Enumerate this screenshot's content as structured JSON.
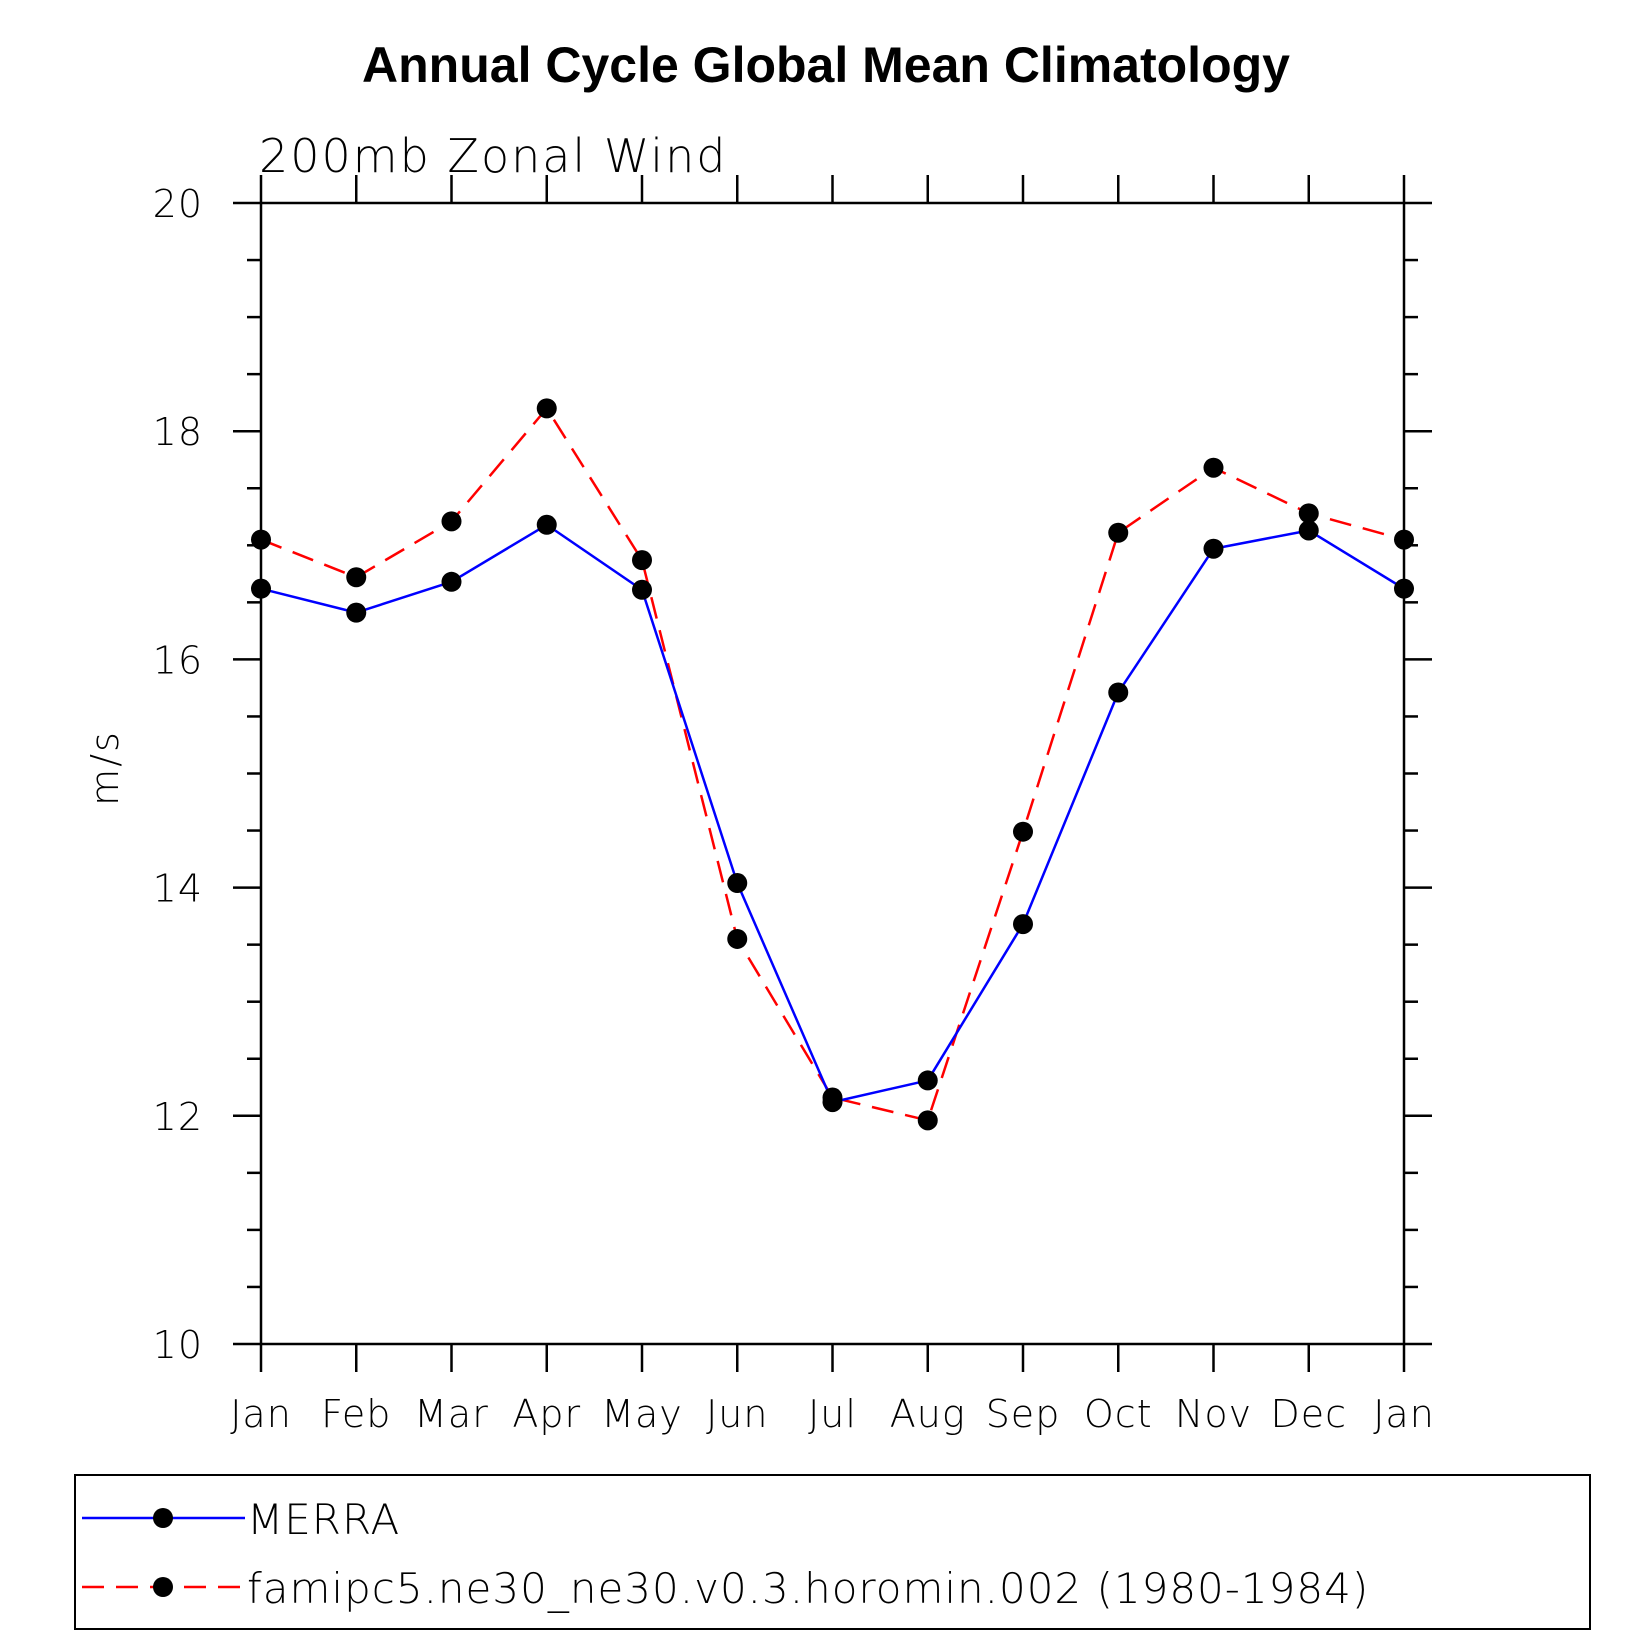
{
  "chart_data": {
    "type": "line",
    "title": "Annual Cycle Global Mean Climatology",
    "subtitle": "200mb Zonal Wind",
    "xlabel": "",
    "ylabel": "m/s",
    "categories": [
      "Jan",
      "Feb",
      "Mar",
      "Apr",
      "May",
      "Jun",
      "Jul",
      "Aug",
      "Sep",
      "Oct",
      "Nov",
      "Dec",
      "Jan"
    ],
    "ylim": [
      10,
      20
    ],
    "yticks": [
      "10",
      "12",
      "14",
      "16",
      "18",
      "20"
    ],
    "grid": false,
    "legend_position": "bottom",
    "series": [
      {
        "name": "MERRA",
        "color": "#0000ff",
        "style": "solid",
        "values": [
          16.62,
          16.41,
          16.68,
          17.18,
          16.61,
          14.04,
          12.12,
          12.31,
          13.68,
          15.71,
          16.97,
          17.13,
          16.62
        ]
      },
      {
        "name": "famipc5.ne30_ne30.v0.3.horomin.002 (1980-1984)",
        "color": "#ff0000",
        "style": "dashed",
        "values": [
          17.05,
          16.72,
          17.21,
          18.2,
          16.87,
          13.55,
          12.16,
          11.96,
          14.49,
          17.11,
          17.68,
          17.28,
          17.05
        ]
      }
    ]
  }
}
